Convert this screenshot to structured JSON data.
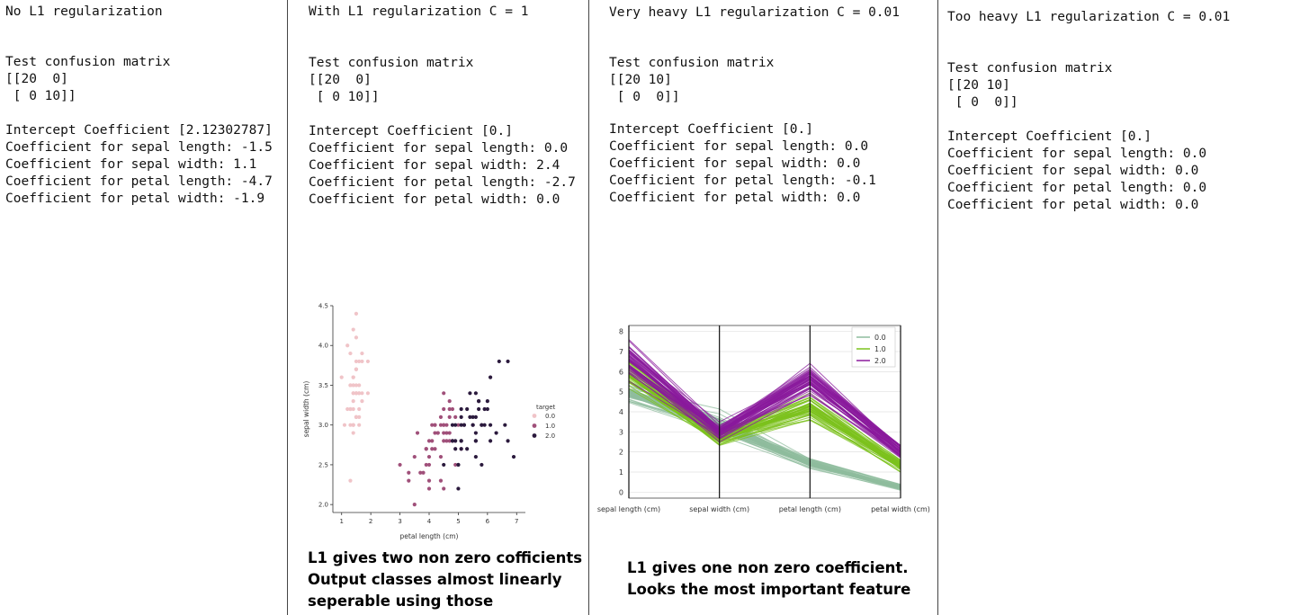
{
  "panels": [
    {
      "title": "No L1 regularization",
      "confusion_label": "Test confusion matrix",
      "matrix_lines": [
        "[[20  0]",
        " [ 0 10]]"
      ],
      "coef_lines": [
        "Intercept Coefficient [2.12302787]",
        "Coefficient for sepal length: -1.5",
        "Coefficient for sepal width: 1.1",
        "Coefficient for petal length: -4.7",
        "Coefficient for petal width: -1.9"
      ]
    },
    {
      "title": "With L1 regularization C = 1",
      "confusion_label": "Test confusion matrix",
      "matrix_lines": [
        "[[20  0]",
        " [ 0 10]]"
      ],
      "coef_lines": [
        "Intercept Coefficient [0.]",
        "Coefficient for sepal length: 0.0",
        "Coefficient for sepal width: 2.4",
        "Coefficient for petal length: -2.7",
        "Coefficient for petal width: 0.0"
      ],
      "note_lines": [
        "L1 gives two non zero cofficients",
        "Output classes almost linearly",
        "seperable using those"
      ]
    },
    {
      "title": "Very heavy L1 regularization C = 0.01",
      "confusion_label": "Test confusion matrix",
      "matrix_lines": [
        "[[20 10]",
        " [ 0  0]]"
      ],
      "coef_lines": [
        "Intercept Coefficient [0.]",
        "Coefficient for sepal length: 0.0",
        "Coefficient for sepal width: 0.0",
        "Coefficient for petal length: -0.1",
        "Coefficient for petal width: 0.0"
      ],
      "note_lines": [
        "L1 gives one non zero coefficient.",
        "Looks the most important feature"
      ]
    },
    {
      "title": "Too heavy L1 regularization C = 0.01",
      "confusion_label": "Test confusion matrix",
      "matrix_lines": [
        "[[20 10]",
        " [ 0  0]]"
      ],
      "coef_lines": [
        "Intercept Coefficient [0.]",
        "Coefficient for sepal length: 0.0",
        "Coefficient for sepal width: 0.0",
        "Coefficient for petal length: 0.0",
        "Coefficient for petal width: 0.0"
      ]
    }
  ],
  "chart_data": [
    {
      "type": "scatter",
      "xlabel": "petal length (cm)",
      "ylabel": "sepal width (cm)",
      "xlim": [
        0.7,
        7.3
      ],
      "ylim": [
        1.9,
        4.5
      ],
      "xticks": [
        1,
        2,
        3,
        4,
        5,
        6,
        7
      ],
      "yticks": [
        2.0,
        2.5,
        3.0,
        3.5,
        4.0,
        4.5
      ],
      "legend_title": "target",
      "legend_position": "right",
      "colors": [
        "#f0c4c8",
        "#a0507a",
        "#2b1a3d"
      ],
      "series": [
        {
          "name": "0.0",
          "points": [
            [
              1.4,
              3.5
            ],
            [
              1.4,
              3.0
            ],
            [
              1.3,
              3.2
            ],
            [
              1.5,
              3.1
            ],
            [
              1.4,
              3.6
            ],
            [
              1.7,
              3.9
            ],
            [
              1.4,
              3.4
            ],
            [
              1.5,
              3.4
            ],
            [
              1.4,
              2.9
            ],
            [
              1.5,
              3.1
            ],
            [
              1.5,
              3.7
            ],
            [
              1.6,
              3.4
            ],
            [
              1.4,
              3.0
            ],
            [
              1.1,
              3.0
            ],
            [
              1.2,
              4.0
            ],
            [
              1.5,
              4.4
            ],
            [
              1.3,
              3.9
            ],
            [
              1.4,
              3.5
            ],
            [
              1.7,
              3.8
            ],
            [
              1.5,
              3.8
            ],
            [
              1.7,
              3.4
            ],
            [
              1.5,
              3.7
            ],
            [
              1.0,
              3.6
            ],
            [
              1.7,
              3.3
            ],
            [
              1.9,
              3.4
            ],
            [
              1.6,
              3.0
            ],
            [
              1.6,
              3.4
            ],
            [
              1.5,
              3.5
            ],
            [
              1.4,
              3.4
            ],
            [
              1.6,
              3.2
            ],
            [
              1.6,
              3.1
            ],
            [
              1.5,
              3.4
            ],
            [
              1.5,
              4.1
            ],
            [
              1.4,
              4.2
            ],
            [
              1.5,
              3.1
            ],
            [
              1.2,
              3.2
            ],
            [
              1.3,
              3.5
            ],
            [
              1.4,
              3.6
            ],
            [
              1.3,
              3.0
            ],
            [
              1.5,
              3.4
            ],
            [
              1.3,
              3.5
            ],
            [
              1.3,
              2.3
            ],
            [
              1.3,
              3.2
            ],
            [
              1.6,
              3.5
            ],
            [
              1.9,
              3.8
            ],
            [
              1.4,
              3.0
            ],
            [
              1.6,
              3.8
            ],
            [
              1.4,
              3.2
            ],
            [
              1.5,
              3.7
            ],
            [
              1.4,
              3.3
            ]
          ]
        },
        {
          "name": "1.0",
          "points": [
            [
              4.7,
              3.2
            ],
            [
              4.5,
              3.2
            ],
            [
              4.9,
              3.1
            ],
            [
              4.0,
              2.3
            ],
            [
              4.6,
              2.8
            ],
            [
              4.5,
              2.8
            ],
            [
              4.7,
              3.3
            ],
            [
              3.3,
              2.4
            ],
            [
              4.6,
              2.9
            ],
            [
              3.9,
              2.7
            ],
            [
              3.5,
              2.0
            ],
            [
              4.2,
              3.0
            ],
            [
              4.0,
              2.2
            ],
            [
              4.7,
              2.9
            ],
            [
              3.6,
              2.9
            ],
            [
              4.4,
              3.1
            ],
            [
              4.5,
              3.0
            ],
            [
              4.1,
              2.7
            ],
            [
              4.5,
              2.2
            ],
            [
              3.9,
              2.5
            ],
            [
              4.8,
              3.2
            ],
            [
              4.0,
              2.8
            ],
            [
              4.9,
              2.5
            ],
            [
              4.7,
              2.8
            ],
            [
              4.3,
              2.9
            ],
            [
              4.4,
              3.0
            ],
            [
              4.8,
              2.8
            ],
            [
              5.0,
              3.0
            ],
            [
              4.5,
              2.9
            ],
            [
              3.5,
              2.6
            ],
            [
              3.8,
              2.4
            ],
            [
              3.7,
              2.4
            ],
            [
              3.9,
              2.7
            ],
            [
              5.1,
              2.7
            ],
            [
              4.5,
              3.0
            ],
            [
              4.5,
              3.4
            ],
            [
              4.7,
              3.1
            ],
            [
              4.4,
              2.3
            ],
            [
              4.1,
              3.0
            ],
            [
              4.0,
              2.5
            ],
            [
              4.4,
              2.6
            ],
            [
              4.6,
              3.0
            ],
            [
              4.0,
              2.6
            ],
            [
              3.3,
              2.3
            ],
            [
              4.2,
              2.7
            ],
            [
              4.2,
              3.0
            ],
            [
              4.2,
              2.9
            ],
            [
              4.3,
              2.9
            ],
            [
              3.0,
              2.5
            ],
            [
              4.1,
              2.8
            ]
          ]
        },
        {
          "name": "2.0",
          "points": [
            [
              6.0,
              3.3
            ],
            [
              5.1,
              2.7
            ],
            [
              5.9,
              3.0
            ],
            [
              5.6,
              2.9
            ],
            [
              5.8,
              3.0
            ],
            [
              6.6,
              3.0
            ],
            [
              4.5,
              2.5
            ],
            [
              6.3,
              2.9
            ],
            [
              5.8,
              2.5
            ],
            [
              6.1,
              3.6
            ],
            [
              5.1,
              3.2
            ],
            [
              5.3,
              2.7
            ],
            [
              5.5,
              3.0
            ],
            [
              5.0,
              2.5
            ],
            [
              5.1,
              2.8
            ],
            [
              5.3,
              3.2
            ],
            [
              5.5,
              3.0
            ],
            [
              6.7,
              3.8
            ],
            [
              6.9,
              2.6
            ],
            [
              5.0,
              2.2
            ],
            [
              5.7,
              3.2
            ],
            [
              4.9,
              2.8
            ],
            [
              6.7,
              2.8
            ],
            [
              4.9,
              2.7
            ],
            [
              5.7,
              3.3
            ],
            [
              6.0,
              3.2
            ],
            [
              4.8,
              2.8
            ],
            [
              4.9,
              3.0
            ],
            [
              5.6,
              2.8
            ],
            [
              5.8,
              3.0
            ],
            [
              6.1,
              2.8
            ],
            [
              6.4,
              3.8
            ],
            [
              5.6,
              2.8
            ],
            [
              5.1,
              2.8
            ],
            [
              5.6,
              2.6
            ],
            [
              6.1,
              3.0
            ],
            [
              5.6,
              3.4
            ],
            [
              5.5,
              3.1
            ],
            [
              4.8,
              3.0
            ],
            [
              5.4,
              3.1
            ],
            [
              5.6,
              3.1
            ],
            [
              5.1,
              3.1
            ],
            [
              5.9,
              3.2
            ],
            [
              5.7,
              3.3
            ],
            [
              5.2,
              3.0
            ],
            [
              5.0,
              2.5
            ],
            [
              5.2,
              3.0
            ],
            [
              5.4,
              3.4
            ],
            [
              5.1,
              3.0
            ]
          ]
        }
      ]
    },
    {
      "type": "line",
      "subtype": "parallel_coordinates",
      "categories": [
        "sepal length (cm)",
        "sepal width (cm)",
        "petal length (cm)",
        "petal width (cm)"
      ],
      "ylim": [
        -0.3,
        8.3
      ],
      "yticks": [
        0,
        1,
        2,
        3,
        4,
        5,
        6,
        7,
        8
      ],
      "legend_position": "top-right",
      "series": [
        {
          "name": "0.0",
          "color": "#8fbc9e",
          "mean": [
            5.0,
            3.4,
            1.46,
            0.24
          ],
          "spread": [
            0.35,
            0.38,
            0.17,
            0.1
          ]
        },
        {
          "name": "1.0",
          "color": "#7cc21e",
          "mean": [
            5.94,
            2.77,
            4.26,
            1.33
          ],
          "spread": [
            0.52,
            0.31,
            0.47,
            0.2
          ]
        },
        {
          "name": "2.0",
          "color": "#8a1a9c",
          "mean": [
            6.59,
            2.97,
            5.55,
            2.03
          ],
          "spread": [
            0.64,
            0.32,
            0.55,
            0.27
          ]
        }
      ]
    }
  ]
}
